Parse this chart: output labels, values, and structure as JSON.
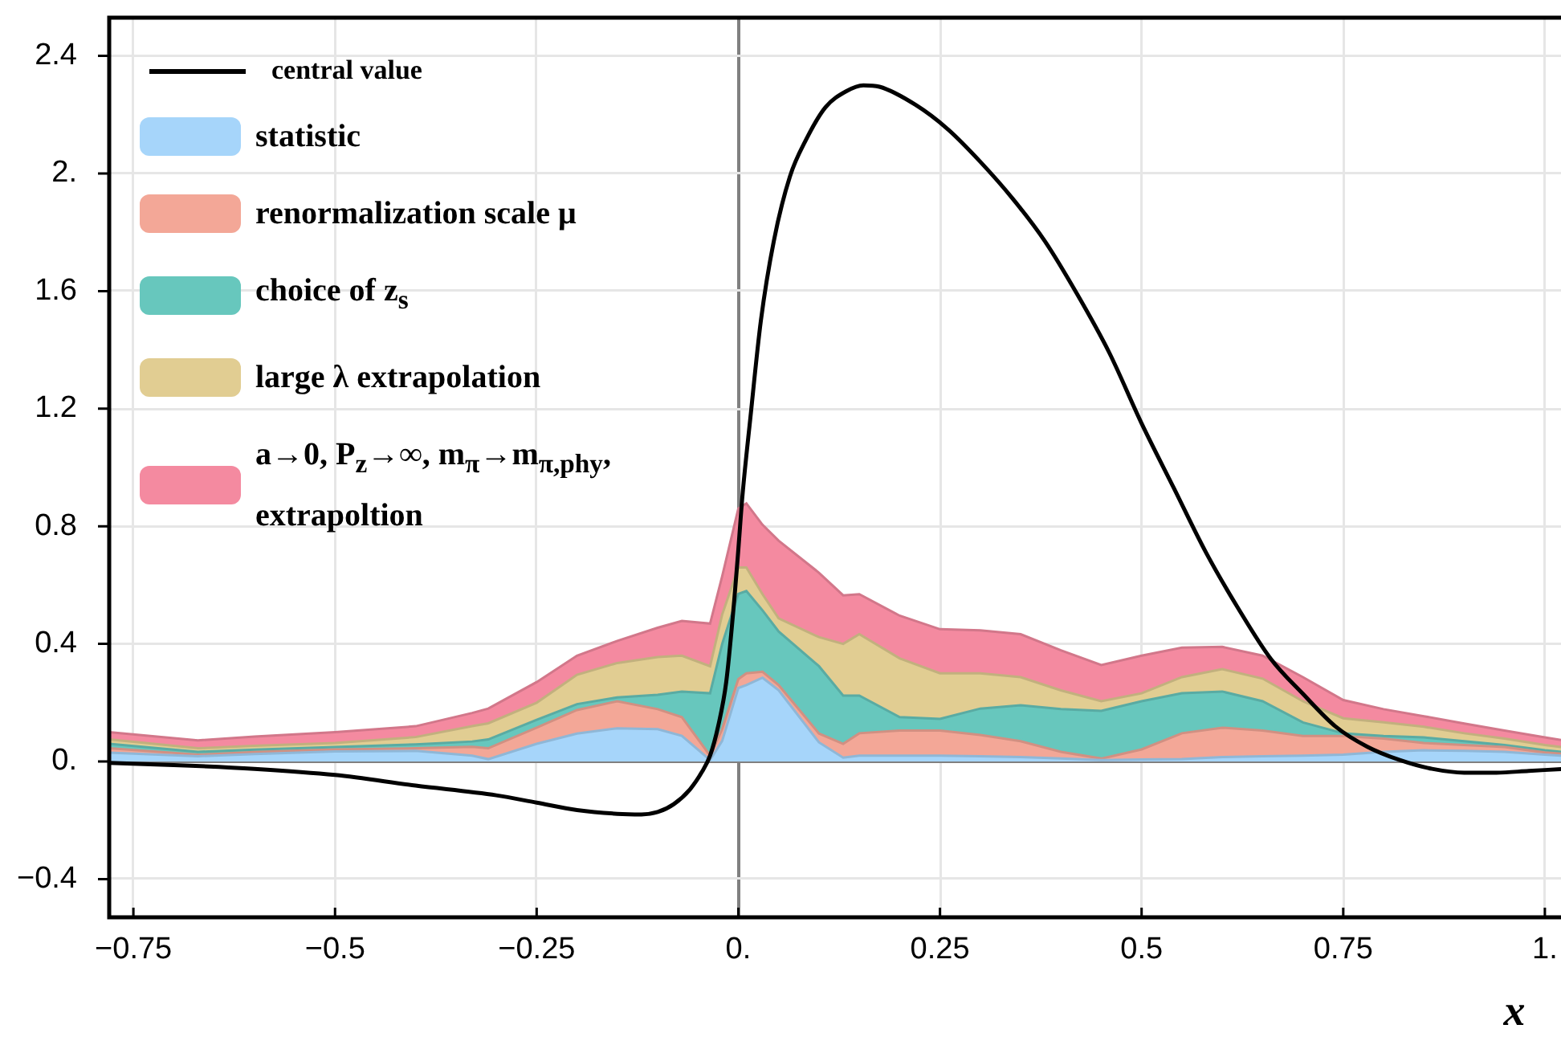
{
  "chart_data": {
    "type": "area",
    "stacked": true,
    "xlabel": "x",
    "x": [
      -0.78,
      -0.67,
      -0.6,
      -0.5,
      -0.4,
      -0.33,
      -0.31,
      -0.25,
      -0.2,
      -0.15,
      -0.1,
      -0.07,
      -0.035,
      -0.02,
      0,
      0.01,
      0.03,
      0.05,
      0.1,
      0.13,
      0.15,
      0.2,
      0.25,
      0.3,
      0.35,
      0.4,
      0.45,
      0.5,
      0.55,
      0.6,
      0.65,
      0.7,
      0.75,
      0.8,
      0.85,
      0.9,
      0.95,
      1.0,
      1.02
    ],
    "series": [
      {
        "name": "central value",
        "type": "line",
        "color": "#000000",
        "x": [
          -0.78,
          -0.7,
          -0.6,
          -0.5,
          -0.4,
          -0.3,
          -0.25,
          -0.2,
          -0.15,
          -0.12,
          -0.1,
          -0.08,
          -0.06,
          -0.045,
          -0.035,
          -0.025,
          -0.015,
          -0.005,
          0,
          0.005,
          0.015,
          0.028,
          0.044,
          0.064,
          0.084,
          0.108,
          0.134,
          0.155,
          0.175,
          0.22,
          0.26,
          0.3,
          0.34,
          0.38,
          0.42,
          0.46,
          0.5,
          0.54,
          0.58,
          0.62,
          0.66,
          0.7,
          0.74,
          0.78,
          0.82,
          0.86,
          0.9,
          0.94,
          0.98,
          1.02
        ],
        "values": [
          -0.005,
          -0.012,
          -0.025,
          -0.046,
          -0.082,
          -0.115,
          -0.14,
          -0.165,
          -0.178,
          -0.18,
          -0.172,
          -0.145,
          -0.095,
          -0.035,
          0.02,
          0.12,
          0.27,
          0.55,
          0.72,
          0.9,
          1.17,
          1.5,
          1.77,
          1.99,
          2.115,
          2.225,
          2.28,
          2.3,
          2.295,
          2.233,
          2.15,
          2.04,
          1.915,
          1.77,
          1.59,
          1.39,
          1.15,
          0.93,
          0.71,
          0.52,
          0.35,
          0.23,
          0.12,
          0.05,
          0.005,
          -0.025,
          -0.038,
          -0.038,
          -0.032,
          -0.026
        ]
      },
      {
        "name": "statistic",
        "color": "#a6d5fa",
        "values": [
          0.03,
          0.018,
          0.025,
          0.034,
          0.036,
          0.02,
          0.008,
          0.06,
          0.095,
          0.113,
          0.11,
          0.087,
          0.005,
          0.07,
          0.25,
          0.26,
          0.285,
          0.242,
          0.065,
          0.013,
          0.02,
          0.02,
          0.02,
          0.018,
          0.015,
          0.01,
          0.005,
          0.007,
          0.008,
          0.015,
          0.018,
          0.02,
          0.023,
          0.033,
          0.038,
          0.036,
          0.033,
          0.023,
          0.02
        ]
      },
      {
        "name": "renormalization scale μ",
        "color": "#f3a797",
        "values": [
          0.015,
          0.005,
          0.007,
          0.007,
          0.009,
          0.03,
          0.037,
          0.055,
          0.08,
          0.092,
          0.068,
          0.064,
          0.015,
          0.04,
          0.03,
          0.04,
          0.02,
          0.018,
          0.03,
          0.047,
          0.076,
          0.085,
          0.085,
          0.072,
          0.054,
          0.023,
          0.005,
          0.034,
          0.088,
          0.1,
          0.087,
          0.067,
          0.064,
          0.045,
          0.025,
          0.02,
          0.016,
          0.008,
          0.007
        ]
      },
      {
        "name": "choice of z$_{s}$",
        "color": "#67c7bd",
        "values": [
          0.015,
          0.01,
          0.008,
          0.008,
          0.013,
          0.018,
          0.03,
          0.027,
          0.02,
          0.013,
          0.049,
          0.087,
          0.212,
          0.29,
          0.29,
          0.28,
          0.209,
          0.182,
          0.229,
          0.164,
          0.128,
          0.046,
          0.04,
          0.09,
          0.122,
          0.145,
          0.162,
          0.164,
          0.136,
          0.123,
          0.1,
          0.046,
          0.009,
          0.009,
          0.019,
          0.013,
          0.007,
          0.007,
          0.006
        ]
      },
      {
        "name": "large λ extrapolation",
        "color": "#e1cd92",
        "values": [
          0.015,
          0.012,
          0.013,
          0.014,
          0.025,
          0.052,
          0.055,
          0.058,
          0.1,
          0.117,
          0.128,
          0.122,
          0.092,
          0.1,
          0.09,
          0.08,
          0.055,
          0.045,
          0.099,
          0.176,
          0.209,
          0.2,
          0.155,
          0.12,
          0.096,
          0.064,
          0.033,
          0.027,
          0.055,
          0.076,
          0.077,
          0.072,
          0.051,
          0.046,
          0.036,
          0.027,
          0.022,
          0.018,
          0.016
        ]
      },
      {
        "name": "a→0, P$_{z}$→∞, m$_{π}$→m$_{π,phy}$, extrapoltion",
        "color": "#f48aa0",
        "values": [
          0.025,
          0.027,
          0.032,
          0.037,
          0.037,
          0.045,
          0.05,
          0.07,
          0.065,
          0.075,
          0.1,
          0.118,
          0.145,
          0.13,
          0.2,
          0.218,
          0.236,
          0.264,
          0.219,
          0.165,
          0.136,
          0.145,
          0.15,
          0.146,
          0.146,
          0.136,
          0.123,
          0.128,
          0.1,
          0.076,
          0.078,
          0.082,
          0.062,
          0.045,
          0.036,
          0.033,
          0.027,
          0.026,
          0.024
        ]
      }
    ],
    "xlim": [
      -0.78,
      1.02
    ],
    "ylim": [
      -0.53,
      2.53
    ],
    "xticks": [
      {
        "value": -0.75,
        "label": "−0.75"
      },
      {
        "value": -0.5,
        "label": "−0.5"
      },
      {
        "value": -0.25,
        "label": "−0.25"
      },
      {
        "value": 0,
        "label": "0."
      },
      0.25,
      0.5,
      0.75,
      {
        "value": 1,
        "label": "1."
      }
    ],
    "yticks": [
      {
        "value": -0.4,
        "label": "−0.4"
      },
      {
        "value": 0,
        "label": "0."
      },
      0.4,
      0.8,
      1.2,
      1.6,
      {
        "value": 2,
        "label": "2."
      },
      2.4
    ],
    "grid": true,
    "legend": "top left",
    "marker": "none",
    "line_style": "solid"
  }
}
